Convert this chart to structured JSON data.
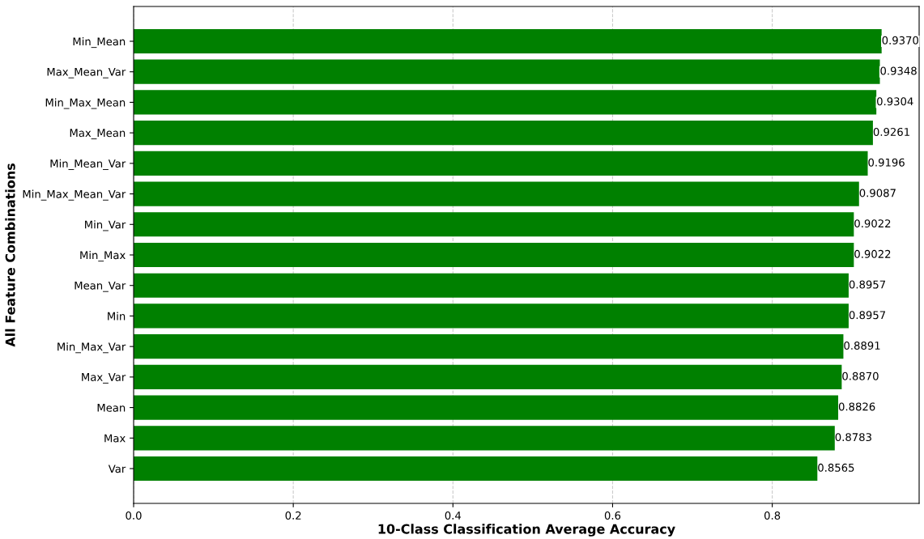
{
  "chart_data": {
    "type": "bar",
    "orientation": "horizontal",
    "xlabel": "10-Class Classification Average Accuracy",
    "ylabel": "All Feature Combinations",
    "categories": [
      "Min_Mean",
      "Max_Mean_Var",
      "Min_Max_Mean",
      "Max_Mean",
      "Min_Mean_Var",
      "Min_Max_Mean_Var",
      "Min_Var",
      "Min_Max",
      "Mean_Var",
      "Min",
      "Min_Max_Var",
      "Max_Var",
      "Mean",
      "Max",
      "Var"
    ],
    "values": [
      0.937,
      0.9348,
      0.9304,
      0.9261,
      0.9196,
      0.9087,
      0.9022,
      0.9022,
      0.8957,
      0.8957,
      0.8891,
      0.887,
      0.8826,
      0.8783,
      0.8565
    ],
    "value_labels": [
      "0.9370",
      "0.9348",
      "0.9304",
      "0.9261",
      "0.9196",
      "0.9087",
      "0.9022",
      "0.9022",
      "0.8957",
      "0.8957",
      "0.8891",
      "0.8870",
      "0.8826",
      "0.8783",
      "0.8565"
    ],
    "color": "#008000",
    "xlim": [
      0,
      0.984
    ],
    "xticks": [
      {
        "value": 0,
        "label": "0.0"
      },
      0.2,
      0.4,
      0.6,
      0.8
    ],
    "grid": "x"
  }
}
